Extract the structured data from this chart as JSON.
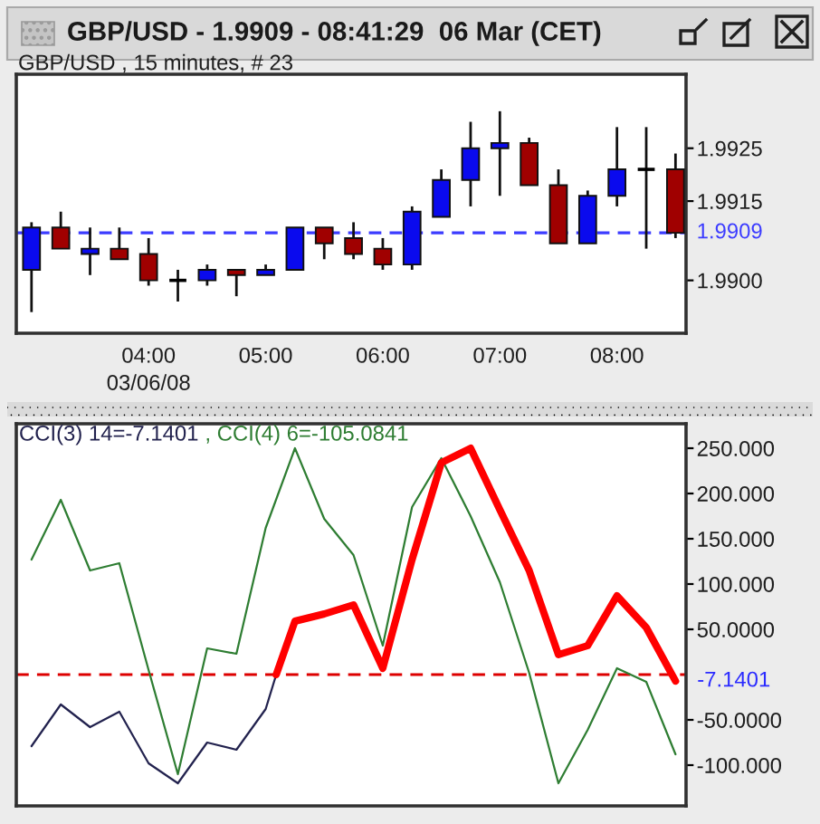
{
  "chart_data": [
    {
      "type": "candlestick",
      "title": "GBP/USD - 1.9909 - 08:41:29  06 Mar (CET)",
      "subtitle": "GBP/USD , 15 minutes, # 23",
      "x": [
        3,
        3.25,
        3.5,
        3.75,
        4,
        4.25,
        4.5,
        4.75,
        5,
        5.25,
        5.5,
        5.75,
        6,
        6.25,
        6.5,
        6.75,
        7,
        7.25,
        7.5,
        7.75,
        8,
        8.25,
        8.5
      ],
      "ohlc": [
        [
          1.9902,
          1.9911,
          1.9894,
          1.991
        ],
        [
          1.991,
          1.9913,
          1.9906,
          1.9906
        ],
        [
          1.9905,
          1.991,
          1.9901,
          1.9906
        ],
        [
          1.9906,
          1.991,
          1.9904,
          1.9904
        ],
        [
          1.9905,
          1.9908,
          1.9899,
          1.99
        ],
        [
          1.99,
          1.9902,
          1.9896,
          1.99
        ],
        [
          1.99,
          1.9903,
          1.9899,
          1.9902
        ],
        [
          1.9902,
          1.9902,
          1.9897,
          1.9901
        ],
        [
          1.9901,
          1.9903,
          1.9901,
          1.9902
        ],
        [
          1.9902,
          1.991,
          1.9902,
          1.991
        ],
        [
          1.991,
          1.991,
          1.9904,
          1.9907
        ],
        [
          1.9908,
          1.9911,
          1.9904,
          1.9905
        ],
        [
          1.9906,
          1.9908,
          1.9902,
          1.9903
        ],
        [
          1.9903,
          1.9914,
          1.9902,
          1.9913
        ],
        [
          1.9912,
          1.9921,
          1.9912,
          1.9919
        ],
        [
          1.9919,
          1.993,
          1.9914,
          1.9925
        ],
        [
          1.9925,
          1.9932,
          1.9916,
          1.9926
        ],
        [
          1.9926,
          1.9927,
          1.9918,
          1.9918
        ],
        [
          1.9918,
          1.9921,
          1.9907,
          1.9907
        ],
        [
          1.9907,
          1.9917,
          1.9907,
          1.9916
        ],
        [
          1.9916,
          1.9929,
          1.9914,
          1.9921
        ],
        [
          1.9921,
          1.9929,
          1.9906,
          1.9921
        ],
        [
          1.9921,
          1.9924,
          1.9908,
          1.9909
        ]
      ],
      "colors": [
        "#0a0aee",
        "#a00000",
        "#0a0aee",
        "#a00000",
        "#a00000",
        "#000000",
        "#0a0aee",
        "#a00000",
        "#0a0aee",
        "#0a0aee",
        "#a00000",
        "#a00000",
        "#a00000",
        "#0a0aee",
        "#0a0aee",
        "#0a0aee",
        "#0a0aee",
        "#a00000",
        "#a00000",
        "#0a0aee",
        "#0a0aee",
        "#000000",
        "#a00000"
      ],
      "xlim": [
        2.87,
        8.59
      ],
      "xticks": [
        {
          "value": 4,
          "label": "04:00\n03/06/08"
        },
        {
          "value": 5,
          "label": "05:00"
        },
        {
          "value": 6,
          "label": "06:00"
        },
        {
          "value": 7,
          "label": "07:00"
        },
        {
          "value": 8,
          "label": "08:00"
        }
      ],
      "ylim": [
        1.989,
        1.9939
      ],
      "yticks": [
        {
          "value": 1.99,
          "label": "1.9900"
        },
        1.9915,
        1.9925
      ],
      "ref_lines": [
        {
          "axis": "y",
          "value": 1.9909,
          "label": "1.9909",
          "color": "#3c3cff",
          "line_style": "dashed"
        }
      ]
    },
    {
      "type": "line",
      "line_style": "solid",
      "legend": "top left",
      "tick_labels": "y",
      "x": [
        3,
        3.25,
        3.5,
        3.75,
        4,
        4.25,
        4.5,
        4.75,
        5,
        5.25,
        5.5,
        5.75,
        6,
        6.25,
        6.5,
        6.75,
        7,
        7.25,
        7.5,
        7.75,
        8,
        8.25,
        8.5
      ],
      "series": [
        {
          "name": "CCI(3) 14=-7.1401",
          "color": "#22224e",
          "x": [
            3,
            3.25,
            3.5,
            3.75,
            4,
            4.25,
            4.5,
            4.75,
            5,
            5.09
          ],
          "values": [
            -79,
            -33,
            -58,
            -41,
            -98,
            -120,
            -75,
            -83,
            -38,
            0
          ]
        },
        {
          "color": "#ff0000",
          "x": [
            5.09,
            5.25,
            5.5,
            5.75,
            6,
            6.25,
            6.5,
            6.75,
            7,
            7.25,
            7.5,
            7.75,
            8,
            8.25,
            8.5
          ],
          "values": [
            0,
            59,
            67,
            77,
            7,
            127,
            234,
            250,
            182,
            115,
            22,
            32,
            87,
            52,
            -7.1401
          ]
        },
        {
          "name": ", CCI(4) 6=-105.0841",
          "color": "#2e7d32",
          "values": [
            127,
            193,
            115,
            123,
            5,
            -110,
            29,
            23,
            162,
            250,
            172,
            132,
            32,
            185,
            239,
            175,
            102,
            2,
            -120,
            -61,
            7,
            -8,
            -88
          ]
        }
      ],
      "xlim": [
        2.87,
        8.59
      ],
      "ylim": [
        -145,
        277
      ],
      "yticks": [
        {
          "value": 250,
          "label": "250.000"
        },
        {
          "value": 200,
          "label": "200.000"
        },
        {
          "value": 150,
          "label": "150.000"
        },
        {
          "value": 100,
          "label": "100.000"
        },
        {
          "value": 50,
          "label": "50.0000"
        },
        {
          "value": -50,
          "label": "-50.0000"
        },
        {
          "value": -100,
          "label": "-100.000"
        }
      ],
      "ref_lines": [
        {
          "axis": "y",
          "value": 0,
          "color": "#dd0000",
          "line_style": "dashed"
        }
      ],
      "annotations": [
        {
          "text": "-7.1401",
          "x": 8.5,
          "y": -7.1401
        }
      ]
    }
  ]
}
